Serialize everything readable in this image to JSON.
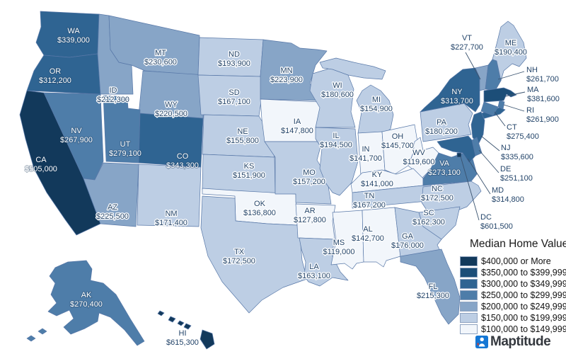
{
  "legend": {
    "title": "Median Home Value",
    "items": [
      {
        "label": "$400,000 or More"
      },
      {
        "label": "$350,000 to $399,999"
      },
      {
        "label": "$300,000 to $349,999"
      },
      {
        "label": "$250,000 to $299,999"
      },
      {
        "label": "$200,000 to $249,999"
      },
      {
        "label": "$150,000 to $199,999"
      },
      {
        "label": "$100,000 to $149,999"
      }
    ]
  },
  "logo": {
    "text": "Maptitude"
  },
  "map": {
    "background": "#FFFFFF",
    "border_color": "#5878A8",
    "label_dark": "#24456A",
    "label_light": "#FFFFFF",
    "palette": [
      "#12395B",
      "#1C4E78",
      "#2F6492",
      "#4E7DA9",
      "#87A5C7",
      "#BDCEE4",
      "#F2F6FB"
    ]
  },
  "states": [
    {
      "abbr": "WA",
      "value": "$339,000",
      "category": 3,
      "label": "light"
    },
    {
      "abbr": "OR",
      "value": "$312,200",
      "category": 3,
      "label": "light"
    },
    {
      "abbr": "CA",
      "value": "$505,000",
      "category": 1,
      "label": "light"
    },
    {
      "abbr": "NV",
      "value": "$267,900",
      "category": 4,
      "label": "light"
    },
    {
      "abbr": "ID",
      "value": "$212,300",
      "category": 5,
      "label": "dark"
    },
    {
      "abbr": "MT",
      "value": "$230,600",
      "category": 5,
      "label": "dark"
    },
    {
      "abbr": "WY",
      "value": "$220,500",
      "category": 5,
      "label": "dark"
    },
    {
      "abbr": "UT",
      "value": "$279,100",
      "category": 4,
      "label": "light"
    },
    {
      "abbr": "CO",
      "value": "$343,300",
      "category": 3,
      "label": "light"
    },
    {
      "abbr": "AZ",
      "value": "$225,500",
      "category": 5,
      "label": "dark"
    },
    {
      "abbr": "NM",
      "value": "$171,400",
      "category": 6,
      "label": "dark"
    },
    {
      "abbr": "ND",
      "value": "$193,900",
      "category": 6,
      "label": "dark"
    },
    {
      "abbr": "SD",
      "value": "$167,100",
      "category": 6,
      "label": "dark"
    },
    {
      "abbr": "NE",
      "value": "$155,800",
      "category": 6,
      "label": "dark"
    },
    {
      "abbr": "KS",
      "value": "$151,900",
      "category": 6,
      "label": "dark"
    },
    {
      "abbr": "OK",
      "value": "$136,800",
      "category": 7,
      "label": "dark"
    },
    {
      "abbr": "TX",
      "value": "$172,500",
      "category": 6,
      "label": "dark"
    },
    {
      "abbr": "MN",
      "value": "$223,900",
      "category": 5,
      "label": "dark"
    },
    {
      "abbr": "IA",
      "value": "$147,800",
      "category": 7,
      "label": "dark"
    },
    {
      "abbr": "MO",
      "value": "$157,200",
      "category": 6,
      "label": "dark"
    },
    {
      "abbr": "AR",
      "value": "$127,800",
      "category": 7,
      "label": "dark"
    },
    {
      "abbr": "LA",
      "value": "$163,100",
      "category": 6,
      "label": "dark"
    },
    {
      "abbr": "WI",
      "value": "$180,600",
      "category": 6,
      "label": "dark"
    },
    {
      "abbr": "IL",
      "value": "$194,500",
      "category": 6,
      "label": "dark"
    },
    {
      "abbr": "MS",
      "value": "$119,000",
      "category": 7,
      "label": "dark"
    },
    {
      "abbr": "AL",
      "value": "$142,700",
      "category": 7,
      "label": "dark"
    },
    {
      "abbr": "MI",
      "value": "$154,900",
      "category": 6,
      "label": "dark"
    },
    {
      "abbr": "IN",
      "value": "$141,700",
      "category": 7,
      "label": "dark"
    },
    {
      "abbr": "OH",
      "value": "$145,700",
      "category": 7,
      "label": "dark"
    },
    {
      "abbr": "WV",
      "value": "$119,600",
      "category": 7,
      "label": "dark"
    },
    {
      "abbr": "KY",
      "value": "$141,000",
      "category": 7,
      "label": "dark"
    },
    {
      "abbr": "TN",
      "value": "$167,200",
      "category": 6,
      "label": "dark"
    },
    {
      "abbr": "VA",
      "value": "$273,100",
      "category": 4,
      "label": "light"
    },
    {
      "abbr": "NC",
      "value": "$172,500",
      "category": 6,
      "label": "dark"
    },
    {
      "abbr": "SC",
      "value": "$162,300",
      "category": 6,
      "label": "dark"
    },
    {
      "abbr": "GA",
      "value": "$176,000",
      "category": 6,
      "label": "dark"
    },
    {
      "abbr": "FL",
      "value": "$215,300",
      "category": 5,
      "label": "dark"
    },
    {
      "abbr": "PA",
      "value": "$180,200",
      "category": 6,
      "label": "dark"
    },
    {
      "abbr": "NY",
      "value": "$313,700",
      "category": 3,
      "label": "light"
    },
    {
      "abbr": "VT",
      "value": "$227,700",
      "category": 5,
      "label": "dark"
    },
    {
      "abbr": "NH",
      "value": "$261,700",
      "category": 4,
      "label": "dark"
    },
    {
      "abbr": "ME",
      "value": "$190,400",
      "category": 6,
      "label": "dark"
    },
    {
      "abbr": "MA",
      "value": "$381,600",
      "category": 2,
      "label": "dark"
    },
    {
      "abbr": "RI",
      "value": "$261,900",
      "category": 4,
      "label": "dark"
    },
    {
      "abbr": "CT",
      "value": "$275,400",
      "category": 4,
      "label": "dark"
    },
    {
      "abbr": "NJ",
      "value": "$335,600",
      "category": 3,
      "label": "dark"
    },
    {
      "abbr": "DE",
      "value": "$251,100",
      "category": 4,
      "label": "dark"
    },
    {
      "abbr": "MD",
      "value": "$314,800",
      "category": 3,
      "label": "dark"
    },
    {
      "abbr": "DC",
      "value": "$601,500",
      "category": 1,
      "label": "dark"
    },
    {
      "abbr": "AK",
      "value": "$270,400",
      "category": 4,
      "label": "light"
    },
    {
      "abbr": "HI",
      "value": "$615,300",
      "category": 1,
      "label": "dark"
    }
  ]
}
